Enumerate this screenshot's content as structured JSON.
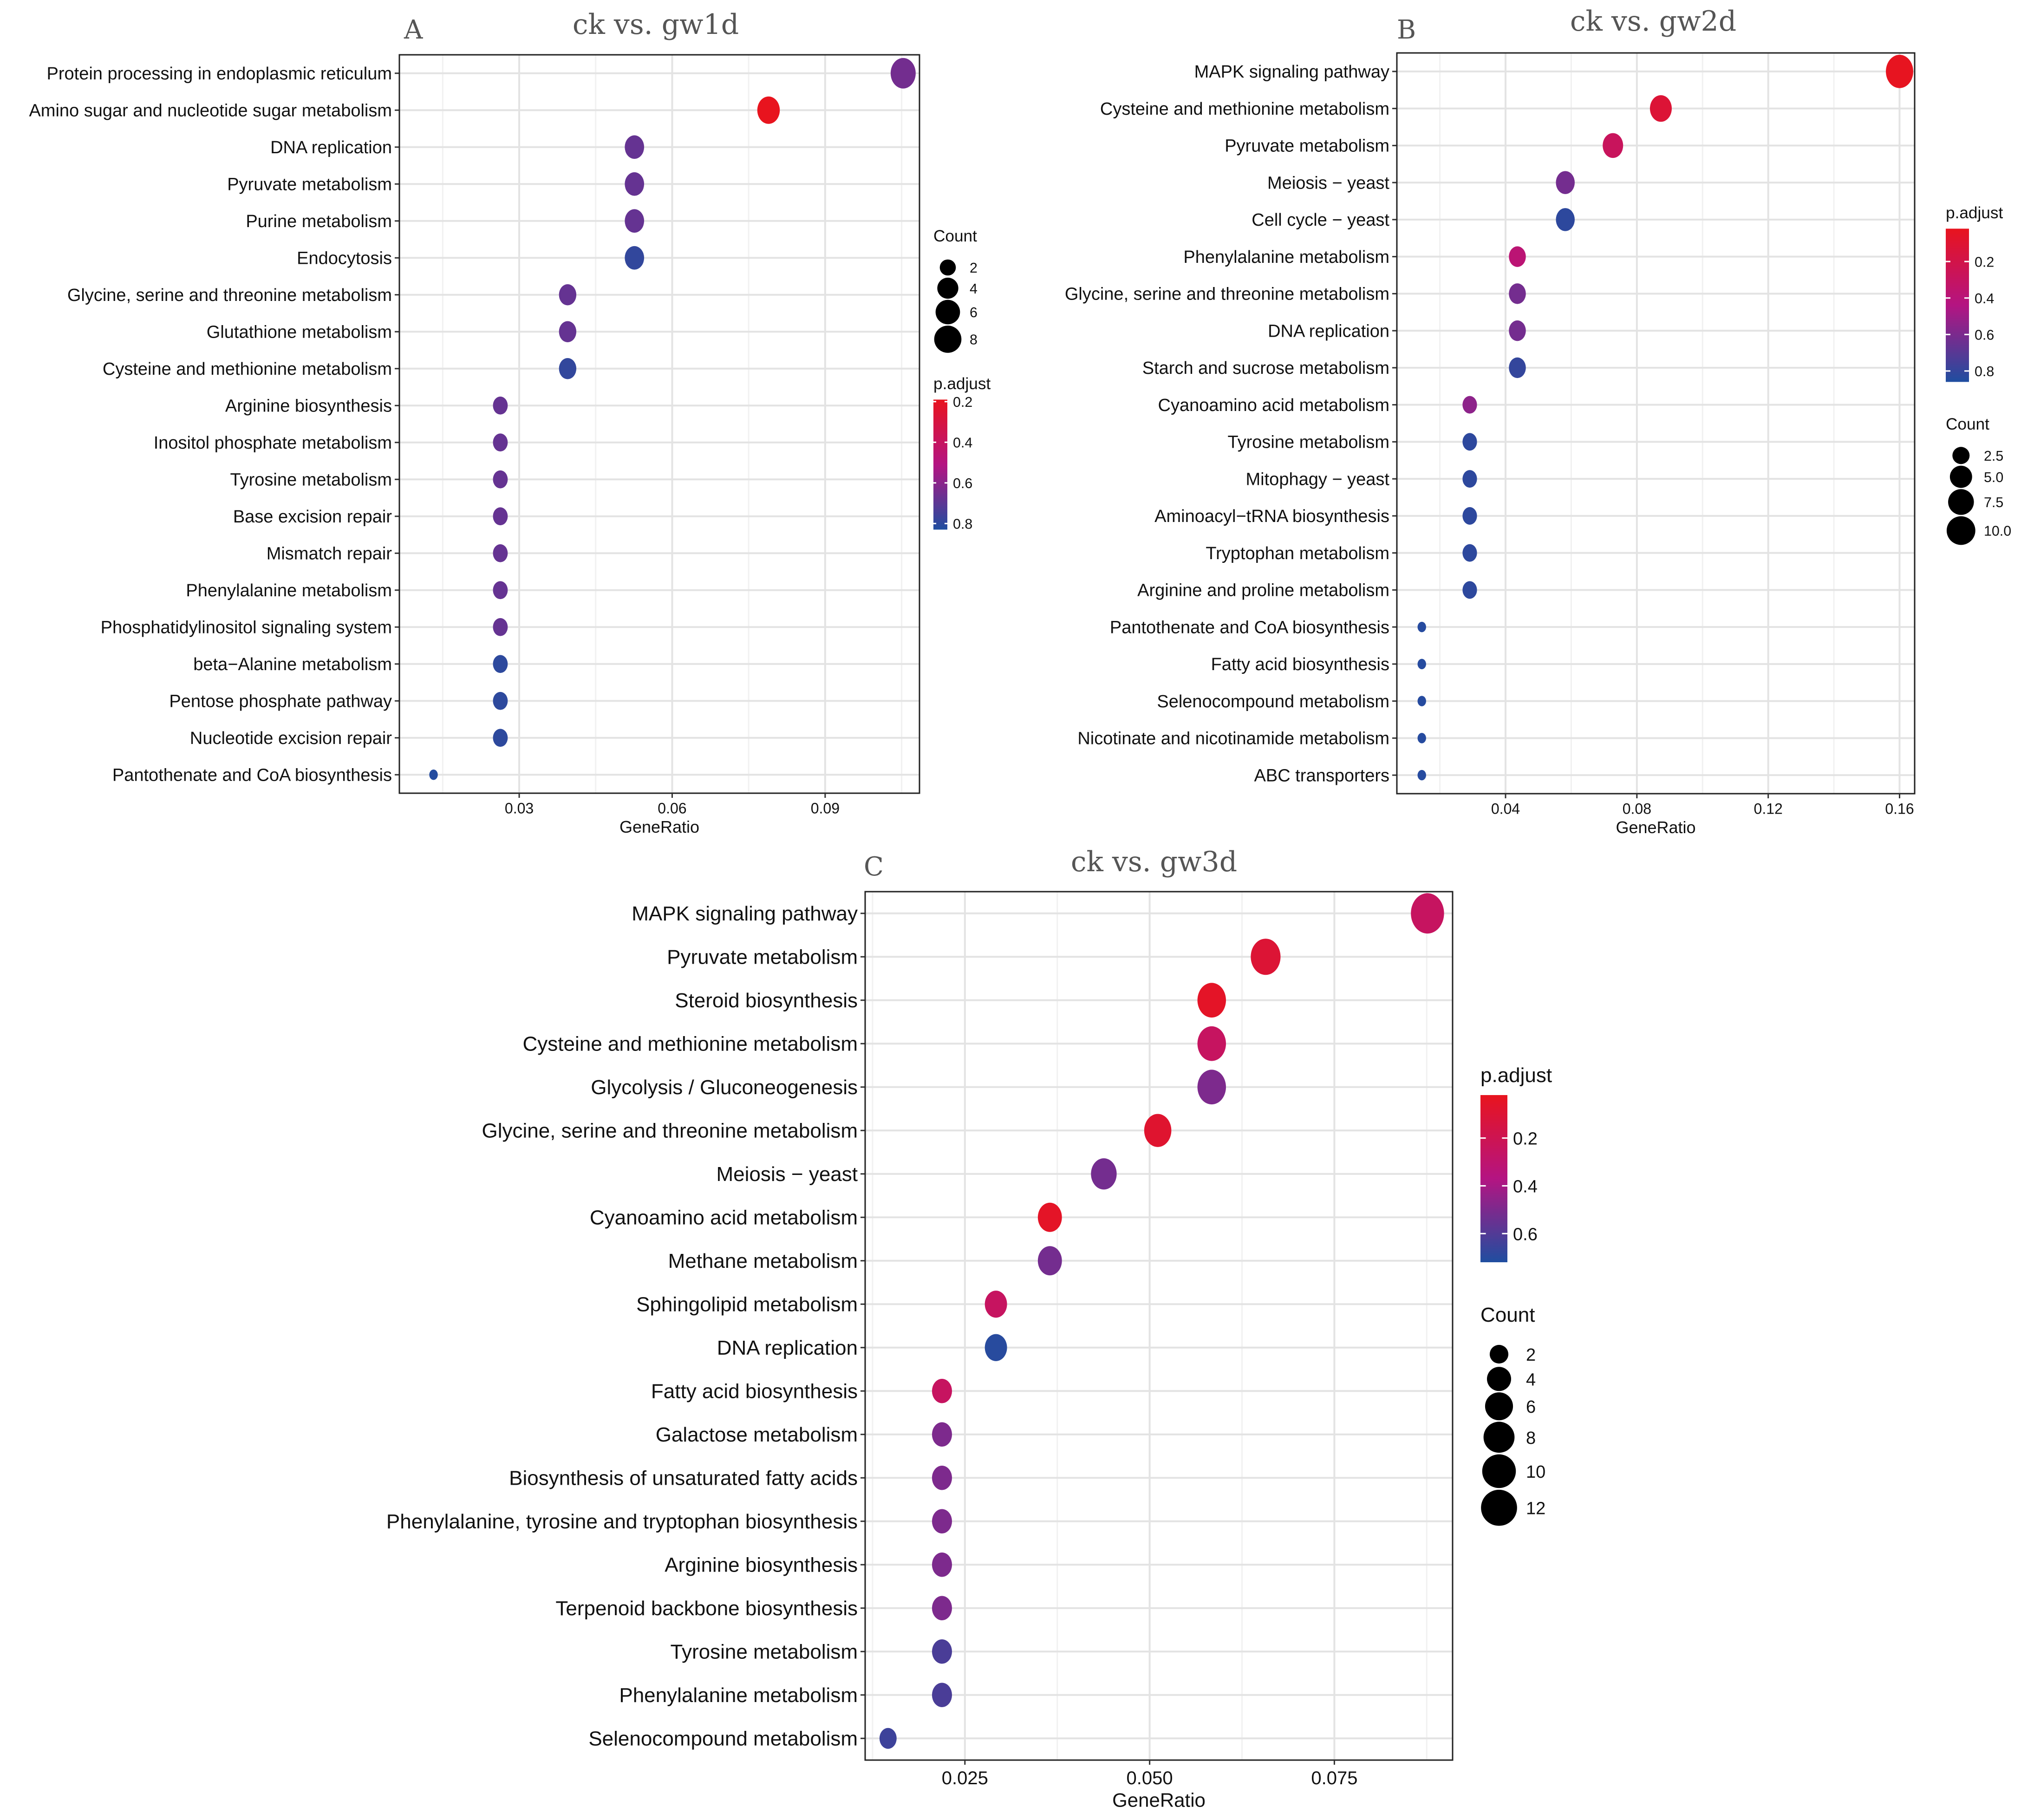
{
  "figure": {
    "panels": [
      {
        "letter": "A",
        "title": "ck vs. gw1d"
      },
      {
        "letter": "B",
        "title": "ck vs. gw2d"
      },
      {
        "letter": "C",
        "title": "ck vs. gw3d"
      }
    ]
  },
  "chart_data": [
    {
      "panel": "A",
      "type": "scatter",
      "title": "ck vs. gw1d",
      "xlabel": "GeneRatio",
      "ylabel": "",
      "xlim": [
        0.0065,
        0.1085
      ],
      "xticks": [
        0.03,
        0.06,
        0.09
      ],
      "xtick_labels": [
        "0.03",
        "0.06",
        "0.09"
      ],
      "grid": true,
      "size_var": "Count",
      "color_var": "p.adjust",
      "color_scale": {
        "low": "#e8141e",
        "high": "#1f4ea0",
        "range": [
          0.19,
          0.83
        ]
      },
      "size_scale": {
        "domain": [
          1,
          8.5
        ]
      },
      "legend_order": [
        "size",
        "color"
      ],
      "legends": {
        "size": {
          "title": "Count",
          "labels": [
            "2",
            "4",
            "6",
            "8"
          ],
          "values": [
            2,
            4,
            6,
            8
          ]
        },
        "color": {
          "title": "p.adjust",
          "labels": [
            "0.2",
            "0.4",
            "0.6",
            "0.8"
          ],
          "values": [
            0.2,
            0.4,
            0.6,
            0.8
          ]
        }
      },
      "points": [
        {
          "term": "Protein processing in endoplasmic reticulum",
          "gene_ratio": 0.1053,
          "count": 8,
          "p_adjust": 0.65
        },
        {
          "term": "Amino sugar and nucleotide sugar metabolism",
          "gene_ratio": 0.0789,
          "count": 6,
          "p_adjust": 0.19
        },
        {
          "term": "DNA replication",
          "gene_ratio": 0.0526,
          "count": 4,
          "p_adjust": 0.68
        },
        {
          "term": "Pyruvate metabolism",
          "gene_ratio": 0.0526,
          "count": 4,
          "p_adjust": 0.68
        },
        {
          "term": "Purine metabolism",
          "gene_ratio": 0.0526,
          "count": 4,
          "p_adjust": 0.68
        },
        {
          "term": "Endocytosis",
          "gene_ratio": 0.0526,
          "count": 4,
          "p_adjust": 0.79
        },
        {
          "term": "Glycine, serine and threonine metabolism",
          "gene_ratio": 0.0395,
          "count": 3,
          "p_adjust": 0.68
        },
        {
          "term": "Glutathione metabolism",
          "gene_ratio": 0.0395,
          "count": 3,
          "p_adjust": 0.68
        },
        {
          "term": "Cysteine and methionine metabolism",
          "gene_ratio": 0.0395,
          "count": 3,
          "p_adjust": 0.79
        },
        {
          "term": "Arginine biosynthesis",
          "gene_ratio": 0.0263,
          "count": 2,
          "p_adjust": 0.68
        },
        {
          "term": "Inositol phosphate metabolism",
          "gene_ratio": 0.0263,
          "count": 2,
          "p_adjust": 0.68
        },
        {
          "term": "Tyrosine metabolism",
          "gene_ratio": 0.0263,
          "count": 2,
          "p_adjust": 0.68
        },
        {
          "term": "Base excision repair",
          "gene_ratio": 0.0263,
          "count": 2,
          "p_adjust": 0.68
        },
        {
          "term": "Mismatch repair",
          "gene_ratio": 0.0263,
          "count": 2,
          "p_adjust": 0.68
        },
        {
          "term": "Phenylalanine metabolism",
          "gene_ratio": 0.0263,
          "count": 2,
          "p_adjust": 0.68
        },
        {
          "term": "Phosphatidylinositol signaling system",
          "gene_ratio": 0.0263,
          "count": 2,
          "p_adjust": 0.68
        },
        {
          "term": "beta−Alanine metabolism",
          "gene_ratio": 0.0263,
          "count": 2,
          "p_adjust": 0.8
        },
        {
          "term": "Pentose phosphate pathway",
          "gene_ratio": 0.0263,
          "count": 2,
          "p_adjust": 0.8
        },
        {
          "term": "Nucleotide excision repair",
          "gene_ratio": 0.0263,
          "count": 2,
          "p_adjust": 0.8
        },
        {
          "term": "Pantothenate and CoA biosynthesis",
          "gene_ratio": 0.0132,
          "count": 1,
          "p_adjust": 0.82
        }
      ]
    },
    {
      "panel": "B",
      "type": "scatter",
      "title": "ck vs. gw2d",
      "xlabel": "GeneRatio",
      "ylabel": "",
      "xlim": [
        0.0069,
        0.1646
      ],
      "xticks": [
        0.04,
        0.08,
        0.12,
        0.16
      ],
      "xtick_labels": [
        "0.04",
        "0.08",
        "0.12",
        "0.16"
      ],
      "grid": true,
      "size_var": "Count",
      "color_var": "p.adjust",
      "color_scale": {
        "low": "#e8141e",
        "high": "#1f4ea0",
        "range": [
          0.02,
          0.86
        ]
      },
      "size_scale": {
        "domain": [
          1,
          11
        ]
      },
      "legend_order": [
        "color",
        "size"
      ],
      "legends": {
        "color": {
          "title": "p.adjust",
          "labels": [
            "0.2",
            "0.4",
            "0.6",
            "0.8"
          ],
          "values": [
            0.2,
            0.4,
            0.6,
            0.8
          ]
        },
        "size": {
          "title": "Count",
          "labels": [
            "2.5",
            "5.0",
            "7.5",
            "10.0"
          ],
          "values": [
            2.5,
            5.0,
            7.5,
            10.0
          ]
        }
      },
      "points": [
        {
          "term": "MAPK signaling pathway",
          "gene_ratio": 0.16,
          "count": 11,
          "p_adjust": 0.03
        },
        {
          "term": "Cysteine and methionine metabolism",
          "gene_ratio": 0.0873,
          "count": 6,
          "p_adjust": 0.12
        },
        {
          "term": "Pyruvate metabolism",
          "gene_ratio": 0.0727,
          "count": 5,
          "p_adjust": 0.28
        },
        {
          "term": "Meiosis − yeast",
          "gene_ratio": 0.0582,
          "count": 4,
          "p_adjust": 0.62
        },
        {
          "term": "Cell cycle − yeast",
          "gene_ratio": 0.0582,
          "count": 4,
          "p_adjust": 0.82
        },
        {
          "term": "Phenylalanine metabolism",
          "gene_ratio": 0.0436,
          "count": 3,
          "p_adjust": 0.38
        },
        {
          "term": "Glycine, serine and threonine metabolism",
          "gene_ratio": 0.0436,
          "count": 3,
          "p_adjust": 0.62
        },
        {
          "term": "DNA replication",
          "gene_ratio": 0.0436,
          "count": 3,
          "p_adjust": 0.62
        },
        {
          "term": "Starch and sucrose metabolism",
          "gene_ratio": 0.0436,
          "count": 3,
          "p_adjust": 0.8
        },
        {
          "term": "Cyanoamino acid metabolism",
          "gene_ratio": 0.0291,
          "count": 2,
          "p_adjust": 0.55
        },
        {
          "term": "Tyrosine metabolism",
          "gene_ratio": 0.0291,
          "count": 2,
          "p_adjust": 0.82
        },
        {
          "term": "Mitophagy − yeast",
          "gene_ratio": 0.0291,
          "count": 2,
          "p_adjust": 0.82
        },
        {
          "term": "Aminoacyl−tRNA biosynthesis",
          "gene_ratio": 0.0291,
          "count": 2,
          "p_adjust": 0.82
        },
        {
          "term": "Tryptophan metabolism",
          "gene_ratio": 0.0291,
          "count": 2,
          "p_adjust": 0.82
        },
        {
          "term": "Arginine and proline metabolism",
          "gene_ratio": 0.0291,
          "count": 2,
          "p_adjust": 0.82
        },
        {
          "term": "Pantothenate and CoA biosynthesis",
          "gene_ratio": 0.0145,
          "count": 1,
          "p_adjust": 0.84
        },
        {
          "term": "Fatty acid biosynthesis",
          "gene_ratio": 0.0145,
          "count": 1,
          "p_adjust": 0.84
        },
        {
          "term": "Selenocompound metabolism",
          "gene_ratio": 0.0145,
          "count": 1,
          "p_adjust": 0.84
        },
        {
          "term": "Nicotinate and nicotinamide metabolism",
          "gene_ratio": 0.0145,
          "count": 1,
          "p_adjust": 0.84
        },
        {
          "term": "ABC transporters",
          "gene_ratio": 0.0145,
          "count": 1,
          "p_adjust": 0.84
        }
      ]
    },
    {
      "panel": "C",
      "type": "scatter",
      "title": "ck vs. gw3d",
      "xlabel": "GeneRatio",
      "ylabel": "",
      "xlim": [
        0.0115,
        0.091
      ],
      "xticks": [
        0.025,
        0.05,
        0.075
      ],
      "xtick_labels": [
        "0.025",
        "0.050",
        "0.075"
      ],
      "grid": true,
      "size_var": "Count",
      "color_var": "p.adjust",
      "color_scale": {
        "low": "#e8141e",
        "high": "#1f4ea0",
        "range": [
          0.02,
          0.72
        ]
      },
      "size_scale": {
        "domain": [
          1,
          13
        ]
      },
      "legend_order": [
        "color",
        "size"
      ],
      "legends": {
        "color": {
          "title": "p.adjust",
          "labels": [
            "0.2",
            "0.4",
            "0.6"
          ],
          "values": [
            0.2,
            0.4,
            0.6
          ]
        },
        "size": {
          "title": "Count",
          "labels": [
            "2",
            "4",
            "6",
            "8",
            "10",
            "12"
          ],
          "values": [
            2,
            4,
            6,
            8,
            10,
            12
          ]
        }
      },
      "points": [
        {
          "term": "MAPK signaling pathway",
          "gene_ratio": 0.0876,
          "count": 12,
          "p_adjust": 0.25
        },
        {
          "term": "Pyruvate metabolism",
          "gene_ratio": 0.0657,
          "count": 9,
          "p_adjust": 0.1
        },
        {
          "term": "Steroid biosynthesis",
          "gene_ratio": 0.0584,
          "count": 8,
          "p_adjust": 0.05
        },
        {
          "term": "Cysteine and methionine metabolism",
          "gene_ratio": 0.0584,
          "count": 8,
          "p_adjust": 0.25
        },
        {
          "term": "Glycolysis / Gluconeogenesis",
          "gene_ratio": 0.0584,
          "count": 8,
          "p_adjust": 0.5
        },
        {
          "term": "Glycine, serine and threonine metabolism",
          "gene_ratio": 0.0511,
          "count": 7,
          "p_adjust": 0.08
        },
        {
          "term": "Meiosis − yeast",
          "gene_ratio": 0.0438,
          "count": 6,
          "p_adjust": 0.52
        },
        {
          "term": "Cyanoamino acid metabolism",
          "gene_ratio": 0.0365,
          "count": 5,
          "p_adjust": 0.05
        },
        {
          "term": "Methane metabolism",
          "gene_ratio": 0.0365,
          "count": 5,
          "p_adjust": 0.52
        },
        {
          "term": "Sphingolipid metabolism",
          "gene_ratio": 0.0292,
          "count": 4,
          "p_adjust": 0.25
        },
        {
          "term": "DNA replication",
          "gene_ratio": 0.0292,
          "count": 4,
          "p_adjust": 0.7
        },
        {
          "term": "Fatty acid biosynthesis",
          "gene_ratio": 0.0219,
          "count": 3,
          "p_adjust": 0.25
        },
        {
          "term": "Galactose metabolism",
          "gene_ratio": 0.0219,
          "count": 3,
          "p_adjust": 0.5
        },
        {
          "term": "Biosynthesis of unsaturated fatty acids",
          "gene_ratio": 0.0219,
          "count": 3,
          "p_adjust": 0.5
        },
        {
          "term": "Phenylalanine, tyrosine and tryptophan biosynthesis",
          "gene_ratio": 0.0219,
          "count": 3,
          "p_adjust": 0.5
        },
        {
          "term": "Arginine biosynthesis",
          "gene_ratio": 0.0219,
          "count": 3,
          "p_adjust": 0.5
        },
        {
          "term": "Terpenoid backbone biosynthesis",
          "gene_ratio": 0.0219,
          "count": 3,
          "p_adjust": 0.5
        },
        {
          "term": "Tyrosine metabolism",
          "gene_ratio": 0.0219,
          "count": 3,
          "p_adjust": 0.62
        },
        {
          "term": "Phenylalanine metabolism",
          "gene_ratio": 0.0219,
          "count": 3,
          "p_adjust": 0.62
        },
        {
          "term": "Selenocompound metabolism",
          "gene_ratio": 0.0146,
          "count": 2,
          "p_adjust": 0.65
        }
      ]
    }
  ]
}
